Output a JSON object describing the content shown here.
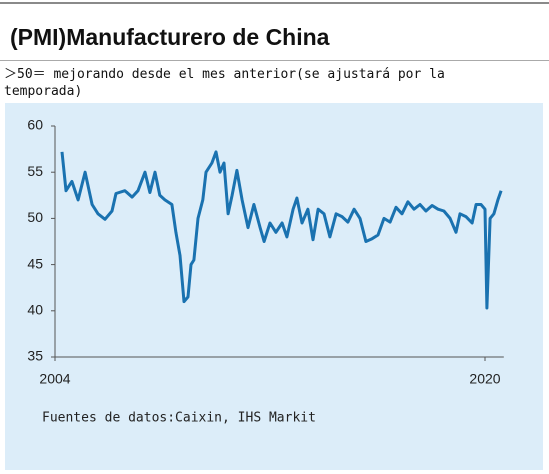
{
  "chart_data": {
    "type": "line",
    "title": "(PMI)Manufacturero de China",
    "subtitle": "＞50＝ mejorando desde el mes anterior(se ajustará por la temporada)",
    "source": "Fuentes de datos:Caixin, IHS Markit",
    "x": [
      2004.26,
      2004.41,
      2004.63,
      2004.86,
      2005.12,
      2005.38,
      2005.6,
      2005.86,
      2006.12,
      2006.27,
      2006.6,
      2006.87,
      2007.09,
      2007.35,
      2007.53,
      2007.72,
      2007.9,
      2008.09,
      2008.35,
      2008.5,
      2008.65,
      2008.8,
      2008.95,
      2009.06,
      2009.17,
      2009.32,
      2009.5,
      2009.62,
      2009.84,
      2009.99,
      2010.14,
      2010.29,
      2010.44,
      2010.59,
      2010.77,
      2010.96,
      2011.18,
      2011.4,
      2011.63,
      2011.78,
      2012.0,
      2012.22,
      2012.45,
      2012.63,
      2012.86,
      2013.0,
      2013.19,
      2013.41,
      2013.6,
      2013.79,
      2014.01,
      2014.23,
      2014.46,
      2014.68,
      2014.9,
      2015.13,
      2015.35,
      2015.57,
      2015.8,
      2016.02,
      2016.24,
      2016.47,
      2016.69,
      2016.91,
      2017.13,
      2017.36,
      2017.58,
      2017.8,
      2018.03,
      2018.25,
      2018.47,
      2018.7,
      2018.92,
      2019.07,
      2019.29,
      2019.52,
      2019.67,
      2019.85,
      2020.0,
      2020.07,
      2020.19,
      2020.33,
      2020.48,
      2020.6
    ],
    "values": [
      57.2,
      53.0,
      54.0,
      52.0,
      55.0,
      51.5,
      50.5,
      49.9,
      50.8,
      52.7,
      53.0,
      52.3,
      53.0,
      55.0,
      52.8,
      55.0,
      52.5,
      52.0,
      51.5,
      48.5,
      46.0,
      41.0,
      41.5,
      45.0,
      45.5,
      50.0,
      52.0,
      55.0,
      56.0,
      57.2,
      55.0,
      56.0,
      50.5,
      52.5,
      55.2,
      52.0,
      49.0,
      51.5,
      49.0,
      47.5,
      49.5,
      48.5,
      49.5,
      48.0,
      51.0,
      52.2,
      49.5,
      51.0,
      47.7,
      51.0,
      50.5,
      48.0,
      50.5,
      50.2,
      49.6,
      51.0,
      50.0,
      47.5,
      47.8,
      48.2,
      50.0,
      49.6,
      51.2,
      50.5,
      51.8,
      51.0,
      51.5,
      50.8,
      51.4,
      51.0,
      50.8,
      50.0,
      48.5,
      50.5,
      50.2,
      49.5,
      51.5,
      51.5,
      51.0,
      40.3,
      50.0,
      50.5,
      52.0,
      53.0
    ],
    "color": "#1a72b0",
    "xlim": [
      2004,
      2020.7
    ],
    "xticks": [
      2004,
      2020
    ],
    "ylim": [
      35,
      60
    ],
    "yticks": [
      35,
      40,
      45,
      50,
      55,
      60
    ],
    "grid": false
  }
}
